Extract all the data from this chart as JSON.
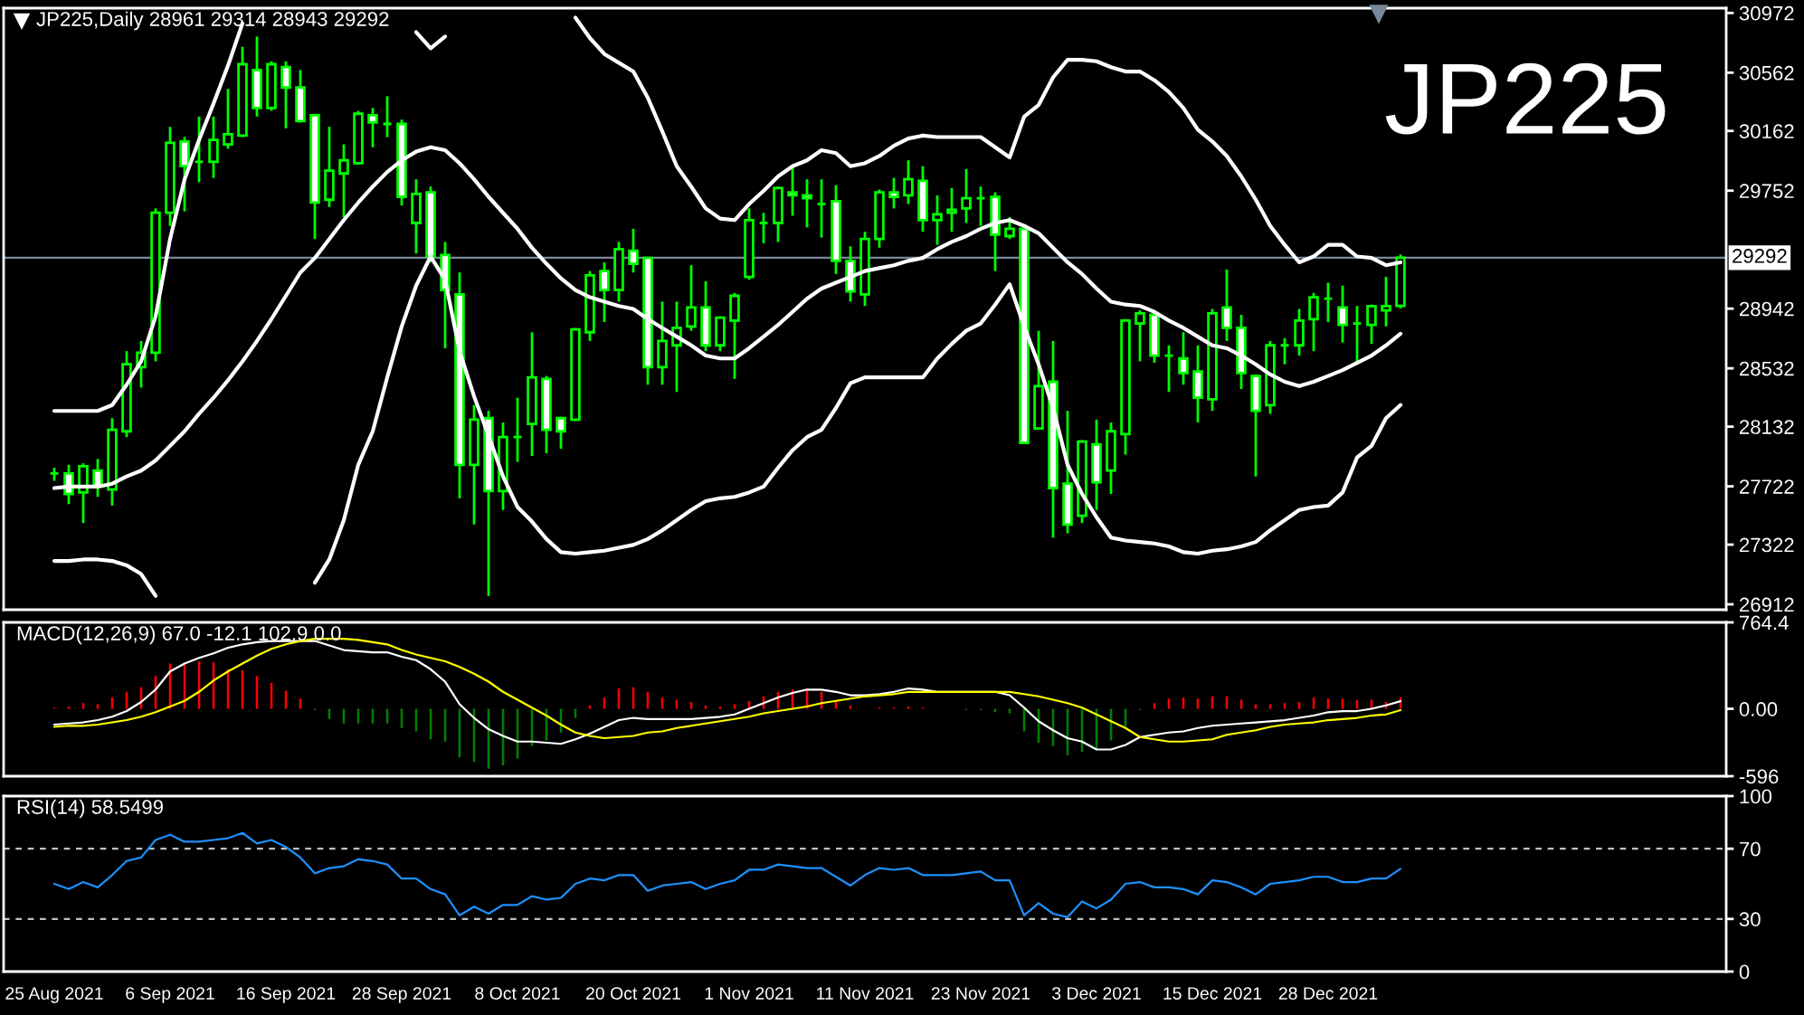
{
  "chart_data": [
    {
      "type": "candlestick",
      "title": "JP225,Daily 28961 29314 28943 29292",
      "annotations": [
        "JP225"
      ],
      "color": "#00ff00",
      "categories": [
        null,
        null,
        null,
        null,
        null,
        null,
        null,
        null,
        null,
        null,
        null,
        null,
        null,
        null,
        null,
        null,
        null,
        null,
        null,
        null,
        null,
        null,
        null,
        null,
        null,
        null,
        null,
        null,
        null,
        null,
        null,
        null,
        null,
        null,
        null,
        null,
        null,
        null,
        null,
        null,
        null,
        null,
        null,
        null,
        null,
        null,
        null,
        null,
        null,
        null,
        null,
        null,
        null,
        null,
        null,
        null,
        null,
        null,
        null,
        null,
        null,
        null,
        null,
        null,
        null,
        null,
        null,
        null,
        null,
        null,
        null,
        null,
        null,
        null,
        null,
        null,
        null,
        null,
        null,
        null,
        null,
        null,
        null,
        null,
        null,
        null,
        null,
        null,
        null,
        null,
        null,
        null,
        null,
        null
      ],
      "ohlc": [
        [
          27810,
          27850,
          27760,
          27810
        ],
        [
          27810,
          27870,
          27600,
          27670
        ],
        [
          27680,
          27880,
          27470,
          27860
        ],
        [
          27830,
          27910,
          27650,
          27720
        ],
        [
          27700,
          28190,
          27590,
          28110
        ],
        [
          28100,
          28650,
          28060,
          28560
        ],
        [
          28540,
          28720,
          28400,
          28640
        ],
        [
          28640,
          29630,
          28580,
          29600
        ],
        [
          29600,
          30190,
          29510,
          30080
        ],
        [
          30090,
          30120,
          29610,
          29920
        ],
        [
          29950,
          30260,
          29810,
          29950
        ],
        [
          29950,
          30260,
          29840,
          30100
        ],
        [
          30070,
          30450,
          30040,
          30140
        ],
        [
          30130,
          30740,
          30120,
          30620
        ],
        [
          30580,
          30810,
          30260,
          30320
        ],
        [
          30320,
          30640,
          30300,
          30620
        ],
        [
          30600,
          30640,
          30180,
          30460
        ],
        [
          30460,
          30580,
          30220,
          30230
        ],
        [
          30270,
          30280,
          29420,
          29670
        ],
        [
          29690,
          30190,
          29640,
          29890
        ],
        [
          29870,
          30070,
          29570,
          29960
        ],
        [
          29940,
          30300,
          29930,
          30280
        ],
        [
          30270,
          30320,
          30050,
          30220
        ],
        [
          30210,
          30400,
          30120,
          30210
        ],
        [
          30210,
          30240,
          29650,
          29710
        ],
        [
          29530,
          29830,
          29320,
          29730
        ],
        [
          29740,
          29780,
          29260,
          29300
        ],
        [
          29310,
          29400,
          28670,
          29070
        ],
        [
          29040,
          29190,
          27640,
          27870
        ],
        [
          27870,
          28280,
          27460,
          28180
        ],
        [
          28190,
          28240,
          26970,
          27690
        ],
        [
          27690,
          28160,
          27560,
          28060
        ],
        [
          28060,
          28330,
          27890,
          28060
        ],
        [
          28150,
          28780,
          27930,
          28470
        ],
        [
          28460,
          28480,
          27950,
          28110
        ],
        [
          28190,
          28200,
          27980,
          28100
        ],
        [
          28180,
          28810,
          28170,
          28800
        ],
        [
          28780,
          29200,
          28720,
          29170
        ],
        [
          29200,
          29260,
          28850,
          29070
        ],
        [
          29070,
          29400,
          28990,
          29350
        ],
        [
          29340,
          29490,
          29190,
          29250
        ],
        [
          29290,
          29290,
          28420,
          28540
        ],
        [
          28540,
          28990,
          28420,
          28720
        ],
        [
          28690,
          28990,
          28370,
          28810
        ],
        [
          28820,
          29240,
          28790,
          28950
        ],
        [
          28950,
          29130,
          28650,
          28690
        ],
        [
          28690,
          28890,
          28650,
          28880
        ],
        [
          28860,
          29050,
          28460,
          29030
        ],
        [
          29160,
          29630,
          29140,
          29550
        ],
        [
          29530,
          29600,
          29390,
          29530
        ],
        [
          29530,
          29780,
          29400,
          29770
        ],
        [
          29740,
          29920,
          29580,
          29720
        ],
        [
          29720,
          29830,
          29500,
          29700
        ],
        [
          29660,
          29830,
          29430,
          29660
        ],
        [
          29680,
          29790,
          29180,
          29270
        ],
        [
          29270,
          29370,
          28990,
          29060
        ],
        [
          29040,
          29470,
          28960,
          29420
        ],
        [
          29420,
          29760,
          29360,
          29740
        ],
        [
          29740,
          29840,
          29630,
          29710
        ],
        [
          29720,
          29960,
          29660,
          29830
        ],
        [
          29820,
          29920,
          29470,
          29550
        ],
        [
          29550,
          29720,
          29380,
          29590
        ],
        [
          29600,
          29770,
          29470,
          29620
        ],
        [
          29630,
          29900,
          29530,
          29700
        ],
        [
          29700,
          29780,
          29510,
          29700
        ],
        [
          29710,
          29740,
          29200,
          29450
        ],
        [
          29440,
          29570,
          29420,
          29490
        ],
        [
          29490,
          29490,
          28020,
          28020
        ],
        [
          28120,
          28790,
          28110,
          28410
        ],
        [
          28440,
          28720,
          27370,
          27710
        ],
        [
          27740,
          28240,
          27400,
          27460
        ],
        [
          27520,
          28040,
          27470,
          28030
        ],
        [
          28010,
          28180,
          27560,
          27750
        ],
        [
          27830,
          28160,
          27670,
          28100
        ],
        [
          28080,
          28870,
          27940,
          28860
        ],
        [
          28840,
          28930,
          28580,
          28910
        ],
        [
          28900,
          28920,
          28570,
          28620
        ],
        [
          28620,
          28690,
          28370,
          28620
        ],
        [
          28600,
          28780,
          28420,
          28500
        ],
        [
          28510,
          28690,
          28160,
          28330
        ],
        [
          28320,
          28940,
          28240,
          28910
        ],
        [
          28950,
          29210,
          28720,
          28810
        ],
        [
          28810,
          28900,
          28390,
          28500
        ],
        [
          28480,
          28490,
          27790,
          28240
        ],
        [
          28280,
          28720,
          28220,
          28690
        ],
        [
          28690,
          28740,
          28560,
          28690
        ],
        [
          28690,
          28940,
          28620,
          28860
        ],
        [
          28870,
          29050,
          28650,
          29020
        ],
        [
          29010,
          29120,
          28850,
          29010
        ],
        [
          28950,
          29100,
          28710,
          28830
        ],
        [
          28840,
          28960,
          28560,
          28840
        ],
        [
          28830,
          28970,
          28700,
          28960
        ],
        [
          28930,
          29160,
          28820,
          28960
        ],
        [
          28961,
          29314,
          28943,
          29292
        ]
      ],
      "colors": [
        "#00ff00",
        "#ffffff",
        "#000000",
        "#ffffff",
        "#000000",
        "#000000",
        "#000000",
        "#000000",
        "#000000",
        "#ffffff",
        "#00ff00",
        "#000000",
        "#000000",
        "#000000",
        "#ffffff",
        "#000000",
        "#ffffff",
        "#ffffff",
        "#ffffff",
        "#000000",
        "#000000",
        "#000000",
        "#ffffff",
        "#00ff00",
        "#ffffff",
        "#000000",
        "#ffffff",
        "#ffffff",
        "#ffffff",
        "#000000",
        "#ffffff",
        "#000000",
        "#00ff00",
        "#000000",
        "#ffffff",
        "#ffffff",
        "#000000",
        "#000000",
        "#ffffff",
        "#000000",
        "#ffffff",
        "#ffffff",
        "#000000",
        "#000000",
        "#000000",
        "#ffffff",
        "#000000",
        "#000000",
        "#000000",
        "#00ff00",
        "#000000",
        "#ffffff",
        "#ffffff",
        "#00ff00",
        "#ffffff",
        "#ffffff",
        "#000000",
        "#000000",
        "#ffffff",
        "#000000",
        "#ffffff",
        "#000000",
        "#000000",
        "#000000",
        "#00ff00",
        "#ffffff",
        "#000000",
        "#ffffff",
        "#000000",
        "#ffffff",
        "#ffffff",
        "#000000",
        "#ffffff",
        "#000000",
        "#000000",
        "#000000",
        "#ffffff",
        "#00ff00",
        "#ffffff",
        "#ffffff",
        "#000000",
        "#ffffff",
        "#ffffff",
        "#ffffff",
        "#000000",
        "#00ff00",
        "#000000",
        "#000000",
        "#00ff00",
        "#ffffff",
        "#00ff00",
        "#000000",
        "#000000",
        "#000000"
      ],
      "series": [
        {
          "type": "line",
          "color": "#ffffff",
          "values": [
            27710,
            27720,
            27720,
            27720,
            27740,
            27790,
            27830,
            27900,
            28000,
            28100,
            28220,
            28330,
            28450,
            28580,
            28720,
            28870,
            29030,
            29190,
            29290,
            29420,
            29550,
            29670,
            29780,
            29880,
            29960,
            30020,
            30050,
            30030,
            29940,
            29830,
            29710,
            29600,
            29490,
            29360,
            29250,
            29150,
            29070,
            29020,
            28990,
            28960,
            28940,
            28870,
            28810,
            28750,
            28690,
            28620,
            28600,
            28600,
            28670,
            28750,
            28830,
            28920,
            29010,
            29080,
            29120,
            29160,
            29200,
            29220,
            29240,
            29270,
            29290,
            29350,
            29400,
            29440,
            29490,
            29530,
            29550,
            29510,
            29460,
            29360,
            29260,
            29180,
            29080,
            28990,
            28970,
            28960,
            28920,
            28860,
            28810,
            28750,
            28690,
            28670,
            28620,
            28560,
            28490,
            28440,
            28410,
            28440,
            28480,
            28520,
            28570,
            28620,
            28690,
            28770
          ]
        },
        {
          "type": "line",
          "color": "#ffffff",
          "values": [
            28240,
            28240,
            28240,
            28240,
            28280,
            28420,
            28580,
            28890,
            29420,
            29830,
            30100,
            30350,
            30610,
            30900,
            null,
            null,
            null,
            null,
            null,
            null,
            null,
            null,
            null,
            null,
            null,
            30840,
            30730,
            30810,
            null,
            null,
            null,
            null,
            null,
            null,
            null,
            null,
            30940,
            30800,
            30690,
            30630,
            30570,
            30390,
            30160,
            29920,
            29780,
            29630,
            29560,
            29550,
            29660,
            29750,
            29850,
            29920,
            29960,
            30030,
            30010,
            29920,
            29940,
            29990,
            30060,
            30110,
            30130,
            30120,
            30120,
            30120,
            30120,
            30050,
            29980,
            30260,
            30340,
            30530,
            30650,
            30650,
            30640,
            30600,
            30570,
            30570,
            30510,
            30430,
            30320,
            30170,
            30090,
            29990,
            29850,
            29690,
            29510,
            29380,
            29260,
            29300,
            29380,
            29380,
            29300,
            29290,
            29240,
            29260
          ]
        },
        {
          "type": "line",
          "color": "#ffffff",
          "values": [
            27210,
            27210,
            27220,
            27220,
            27210,
            27180,
            27120,
            26970,
            null,
            null,
            null,
            null,
            null,
            null,
            null,
            null,
            null,
            null,
            27060,
            27220,
            27490,
            27870,
            28100,
            28470,
            28820,
            29100,
            29300,
            29140,
            28650,
            28340,
            28070,
            27790,
            27580,
            27480,
            27360,
            27270,
            27260,
            27270,
            27280,
            27300,
            27320,
            27360,
            27420,
            27490,
            27560,
            27620,
            27640,
            27650,
            27680,
            27720,
            27850,
            27970,
            28060,
            28110,
            28260,
            28430,
            28470,
            28470,
            28470,
            28470,
            28470,
            28600,
            28700,
            28790,
            28840,
            28970,
            29110,
            28820,
            28560,
            28260,
            27870,
            27670,
            27510,
            27370,
            27350,
            27340,
            27330,
            27310,
            27270,
            27260,
            27280,
            27290,
            27310,
            27340,
            27420,
            27490,
            27560,
            27580,
            27590,
            27680,
            27920,
            28000,
            28190,
            28280
          ]
        }
      ],
      "ylim": [
        26875,
        31005
      ],
      "yticks": [
        26912,
        27322,
        27722,
        28132,
        28532,
        28942,
        29752,
        30162,
        30562,
        30972
      ],
      "ref_lines": [
        {
          "axis": "y",
          "value": 29292,
          "label": "29292",
          "color": "#778899"
        }
      ],
      "tick_labels": "y"
    },
    {
      "type": "bar",
      "title": "MACD(12,26,9) 67.0 -12.1 102.9 0.0",
      "categories": [
        null,
        null,
        null,
        null,
        null,
        null,
        null,
        null,
        null,
        null,
        null,
        null,
        null,
        null,
        null,
        null,
        null,
        null,
        null,
        null,
        null,
        null,
        null,
        null,
        null,
        null,
        null,
        null,
        null,
        null,
        null,
        null,
        null,
        null,
        null,
        null,
        null,
        null,
        null,
        null,
        null,
        null,
        null,
        null,
        null,
        null,
        null,
        null,
        null,
        null,
        null,
        null,
        null,
        null,
        null,
        null,
        null,
        null,
        null,
        null,
        null,
        null,
        null,
        null,
        null,
        null,
        null,
        null,
        null,
        null,
        null,
        null,
        null,
        null,
        null,
        null,
        null,
        null,
        null,
        null,
        null,
        null,
        null,
        null,
        null,
        null,
        null,
        null,
        null,
        null,
        null,
        null,
        null,
        null
      ],
      "series": [
        {
          "values": [
            10,
            20,
            50,
            40,
            100,
            150,
            190,
            290,
            400,
            390,
            420,
            410,
            350,
            340,
            290,
            230,
            160,
            90,
            -10,
            -90,
            -130,
            -130,
            -130,
            -130,
            -170,
            -200,
            -270,
            -290,
            -430,
            -470,
            -530,
            -500,
            -440,
            -330,
            -280,
            -210,
            -80,
            30,
            100,
            180,
            190,
            150,
            100,
            80,
            60,
            30,
            20,
            40,
            70,
            110,
            150,
            170,
            180,
            150,
            70,
            30,
            null,
            10,
            10,
            20,
            10,
            null,
            null,
            -10,
            -10,
            -30,
            -40,
            -200,
            -300,
            -330,
            -410,
            -380,
            -360,
            -280,
            -160,
            -10,
            50,
            90,
            100,
            90,
            110,
            110,
            80,
            40,
            40,
            50,
            60,
            100,
            90,
            90,
            80,
            80,
            60,
            102.9
          ],
          "colors": [
            "#ff0000",
            "#ff0000",
            "#ff0000",
            "#ff0000",
            "#ff0000",
            "#ff0000",
            "#ff0000",
            "#ff0000",
            "#ff0000",
            "#ff0000",
            "#ff0000",
            "#ff0000",
            "#ff0000",
            "#ff0000",
            "#ff0000",
            "#ff0000",
            "#ff0000",
            "#ff0000",
            "#008000",
            "#008000",
            "#008000",
            "#008000",
            "#008000",
            "#008000",
            "#008000",
            "#008000",
            "#008000",
            "#008000",
            "#008000",
            "#008000",
            "#008000",
            "#008000",
            "#008000",
            "#008000",
            "#008000",
            "#008000",
            "#008000",
            "#ff0000",
            "#ff0000",
            "#ff0000",
            "#ff0000",
            "#ff0000",
            "#ff0000",
            "#ff0000",
            "#ff0000",
            "#ff0000",
            "#ff0000",
            "#ff0000",
            "#ff0000",
            "#ff0000",
            "#ff0000",
            "#ff0000",
            "#ff0000",
            "#ff0000",
            "#ff0000",
            "#ff0000",
            "#ff0000",
            "#ff0000",
            "#ff0000",
            "#ff0000",
            "#ff0000",
            "#ff0000",
            "#ff0000",
            "#008000",
            "#008000",
            "#008000",
            "#008000",
            "#008000",
            "#008000",
            "#008000",
            "#008000",
            "#008000",
            "#008000",
            "#008000",
            "#008000",
            "#008000",
            "#ff0000",
            "#ff0000",
            "#ff0000",
            "#ff0000",
            "#ff0000",
            "#ff0000",
            "#ff0000",
            "#ff0000",
            "#ff0000",
            "#ff0000",
            "#ff0000",
            "#ff0000",
            "#ff0000",
            "#ff0000",
            "#ff0000",
            "#ff0000",
            "#ff0000",
            "#ff0000"
          ]
        },
        {
          "type": "line",
          "color": "#ffffff",
          "values": [
            -140,
            -130,
            -120,
            -100,
            -70,
            -20,
            60,
            170,
            330,
            400,
            450,
            490,
            540,
            570,
            590,
            600,
            600,
            600,
            600,
            560,
            520,
            510,
            500,
            500,
            460,
            430,
            350,
            240,
            40,
            -80,
            -180,
            -240,
            -290,
            -290,
            -300,
            -310,
            -270,
            -220,
            -160,
            -100,
            -80,
            -90,
            -90,
            -90,
            -90,
            -80,
            -70,
            -50,
            0,
            50,
            100,
            140,
            170,
            170,
            150,
            120,
            120,
            130,
            150,
            180,
            170,
            150,
            150,
            150,
            150,
            150,
            120,
            10,
            -110,
            -190,
            -260,
            -290,
            -360,
            -360,
            -320,
            -250,
            -230,
            -210,
            -200,
            -170,
            -150,
            -140,
            -130,
            -120,
            -110,
            -100,
            -80,
            -60,
            -30,
            -20,
            -20,
            0,
            30,
            67.0
          ]
        },
        {
          "type": "line",
          "color": "#ffff00",
          "values": [
            -160,
            -150,
            -150,
            -140,
            -120,
            -100,
            -70,
            -30,
            20,
            70,
            150,
            250,
            330,
            400,
            470,
            530,
            570,
            600,
            620,
            620,
            620,
            610,
            590,
            570,
            520,
            480,
            450,
            420,
            370,
            310,
            240,
            150,
            80,
            10,
            -60,
            -140,
            -210,
            -240,
            -260,
            -250,
            -240,
            -210,
            -200,
            -170,
            -150,
            -130,
            -110,
            -90,
            -70,
            -40,
            -20,
            0,
            20,
            50,
            70,
            90,
            110,
            120,
            130,
            150,
            150,
            150,
            150,
            150,
            150,
            150,
            150,
            130,
            110,
            80,
            50,
            10,
            -50,
            -110,
            -170,
            -250,
            -270,
            -290,
            -290,
            -280,
            -270,
            -230,
            -210,
            -190,
            -160,
            -140,
            -130,
            -120,
            -100,
            -90,
            -80,
            -60,
            -50,
            -12.1
          ]
        }
      ],
      "ylim": [
        -596,
        764.4
      ],
      "yticks": [
        -596,
        {
          "value": 0,
          "label": "0.00"
        },
        764.4
      ],
      "tick_labels": "y"
    },
    {
      "type": "line",
      "title": "RSI(14) 58.5499",
      "categories": [
        "25 Aug 2021",
        null,
        null,
        null,
        null,
        null,
        null,
        null,
        "6 Sep 2021",
        null,
        null,
        null,
        null,
        null,
        null,
        null,
        "16 Sep 2021",
        null,
        null,
        null,
        null,
        null,
        null,
        null,
        "28 Sep 2021",
        null,
        null,
        null,
        null,
        null,
        null,
        null,
        "8 Oct 2021",
        null,
        null,
        null,
        null,
        null,
        null,
        null,
        "20 Oct 2021",
        null,
        null,
        null,
        null,
        null,
        null,
        null,
        "1 Nov 2021",
        null,
        null,
        null,
        null,
        null,
        null,
        null,
        "11 Nov 2021",
        null,
        null,
        null,
        null,
        null,
        null,
        null,
        "23 Nov 2021",
        null,
        null,
        null,
        null,
        null,
        null,
        null,
        "3 Dec 2021",
        null,
        null,
        null,
        null,
        null,
        null,
        null,
        "15 Dec 2021",
        null,
        null,
        null,
        null,
        null,
        null,
        null,
        "28 Dec 2021",
        null,
        null,
        null,
        null,
        null
      ],
      "series": [
        {
          "color": "#1e90ff",
          "values": [
            50,
            47,
            51,
            48,
            55,
            63,
            65,
            75,
            78,
            74,
            74,
            75,
            76,
            79,
            73,
            75,
            71,
            65,
            56,
            59,
            60,
            64,
            63,
            61,
            53,
            53,
            47,
            44,
            32,
            37,
            33,
            38,
            38,
            43,
            41,
            42,
            50,
            53,
            52,
            55,
            55,
            46,
            49,
            50,
            51,
            47,
            50,
            52,
            58,
            58,
            61,
            60,
            59,
            59,
            54,
            49,
            55,
            59,
            58,
            59,
            55,
            55,
            55,
            56,
            57,
            52,
            52,
            32,
            39,
            33,
            31,
            40,
            36,
            41,
            50,
            51,
            48,
            48,
            47,
            44,
            52,
            51,
            48,
            44,
            50,
            51,
            52,
            54,
            54,
            51,
            51,
            53,
            53,
            58.5499
          ]
        }
      ],
      "ylim": [
        0,
        100
      ],
      "yticks": [
        0,
        30,
        70,
        100
      ],
      "ref_lines": [
        {
          "axis": "y",
          "value": 70,
          "line_style": "dashed",
          "color": "#c0c0c0"
        },
        {
          "axis": "y",
          "value": 30,
          "line_style": "dashed",
          "color": "#c0c0c0"
        }
      ]
    }
  ]
}
